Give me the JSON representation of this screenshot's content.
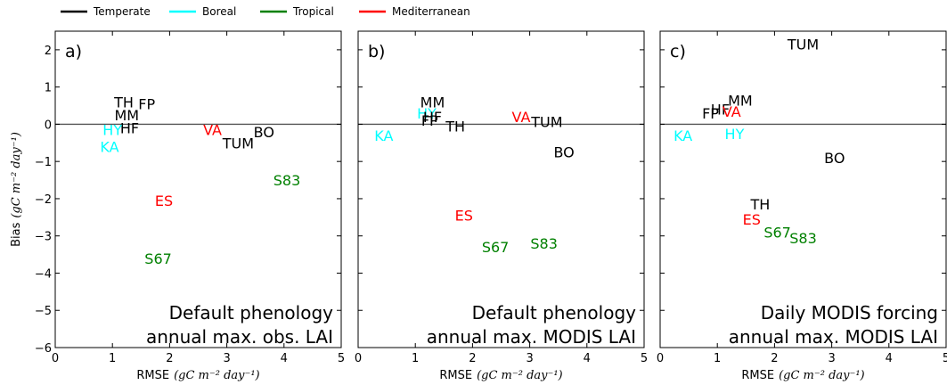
{
  "legend": [
    {
      "name": "Temperate",
      "color": "#000000"
    },
    {
      "name": "Boreal",
      "color": "#00ffff"
    },
    {
      "name": "Tropical",
      "color": "#008000"
    },
    {
      "name": "Mediterranean",
      "color": "#ff0000"
    }
  ],
  "chart_data": [
    {
      "type": "scatter",
      "panel": "a)",
      "xlabel_main": "RMSE",
      "xlabel_unit": "(gC m⁻² day⁻¹)",
      "ylabel_main": "Bias",
      "ylabel_unit": "(gC m⁻² day⁻¹)",
      "xlim": [
        0,
        5
      ],
      "ylim": [
        -6,
        2.5
      ],
      "xticks": [
        0,
        1,
        2,
        3,
        4,
        5
      ],
      "yticks": [
        -6,
        -5,
        -4,
        -3,
        -2,
        -1,
        0,
        1,
        2
      ],
      "annotation": [
        "Default phenology",
        "annual max. obs. LAI"
      ],
      "points": [
        {
          "label": "TH",
          "x": 1.2,
          "y": 0.6,
          "group": "Temperate"
        },
        {
          "label": "FP",
          "x": 1.6,
          "y": 0.55,
          "group": "Temperate"
        },
        {
          "label": "MM",
          "x": 1.25,
          "y": 0.25,
          "group": "Temperate"
        },
        {
          "label": "HF",
          "x": 1.3,
          "y": -0.1,
          "group": "Temperate"
        },
        {
          "label": "HY",
          "x": 1.0,
          "y": -0.15,
          "group": "Boreal"
        },
        {
          "label": "KA",
          "x": 0.95,
          "y": -0.6,
          "group": "Boreal"
        },
        {
          "label": "VA",
          "x": 2.75,
          "y": -0.15,
          "group": "Mediterranean"
        },
        {
          "label": "TUM",
          "x": 3.2,
          "y": -0.5,
          "group": "Temperate"
        },
        {
          "label": "BO",
          "x": 3.65,
          "y": -0.2,
          "group": "Temperate"
        },
        {
          "label": "S83",
          "x": 4.05,
          "y": -1.5,
          "group": "Tropical"
        },
        {
          "label": "ES",
          "x": 1.9,
          "y": -2.05,
          "group": "Mediterranean"
        },
        {
          "label": "S67",
          "x": 1.8,
          "y": -3.6,
          "group": "Tropical"
        }
      ]
    },
    {
      "type": "scatter",
      "panel": "b)",
      "xlabel_main": "RMSE",
      "xlabel_unit": "(gC m⁻² day⁻¹)",
      "xlim": [
        0,
        5
      ],
      "ylim": [
        -6,
        2.5
      ],
      "xticks": [
        0,
        1,
        2,
        3,
        4,
        5
      ],
      "annotation": [
        "Default phenology",
        "annual max. MODIS LAI"
      ],
      "points": [
        {
          "label": "MM",
          "x": 1.3,
          "y": 0.6,
          "group": "Temperate"
        },
        {
          "label": "HY",
          "x": 1.2,
          "y": 0.3,
          "group": "Boreal"
        },
        {
          "label": "HF",
          "x": 1.3,
          "y": 0.2,
          "group": "Temperate"
        },
        {
          "label": "FP",
          "x": 1.25,
          "y": 0.1,
          "group": "Temperate"
        },
        {
          "label": "TH",
          "x": 1.7,
          "y": -0.05,
          "group": "Temperate"
        },
        {
          "label": "KA",
          "x": 0.45,
          "y": -0.3,
          "group": "Boreal"
        },
        {
          "label": "VA",
          "x": 2.85,
          "y": 0.2,
          "group": "Mediterranean"
        },
        {
          "label": "TUM",
          "x": 3.3,
          "y": 0.07,
          "group": "Temperate"
        },
        {
          "label": "BO",
          "x": 3.6,
          "y": -0.75,
          "group": "Temperate"
        },
        {
          "label": "ES",
          "x": 1.85,
          "y": -2.45,
          "group": "Mediterranean"
        },
        {
          "label": "S67",
          "x": 2.4,
          "y": -3.3,
          "group": "Tropical"
        },
        {
          "label": "S83",
          "x": 3.25,
          "y": -3.2,
          "group": "Tropical"
        }
      ]
    },
    {
      "type": "scatter",
      "panel": "c)",
      "xlabel_main": "RMSE",
      "xlabel_unit": "(gC m⁻² day⁻¹)",
      "xlim": [
        0,
        5
      ],
      "ylim": [
        -6,
        2.5
      ],
      "xticks": [
        0,
        1,
        2,
        3,
        4,
        5
      ],
      "annotation": [
        "Daily MODIS forcing",
        "annual max. MODIS LAI"
      ],
      "points": [
        {
          "label": "TUM",
          "x": 2.5,
          "y": 2.15,
          "group": "Temperate"
        },
        {
          "label": "MM",
          "x": 1.4,
          "y": 0.65,
          "group": "Temperate"
        },
        {
          "label": "HF",
          "x": 1.05,
          "y": 0.4,
          "group": "Temperate"
        },
        {
          "label": "FP",
          "x": 0.88,
          "y": 0.3,
          "group": "Temperate"
        },
        {
          "label": "VA",
          "x": 1.25,
          "y": 0.35,
          "group": "Mediterranean"
        },
        {
          "label": "KA",
          "x": 0.4,
          "y": -0.3,
          "group": "Boreal"
        },
        {
          "label": "HY",
          "x": 1.3,
          "y": -0.25,
          "group": "Boreal"
        },
        {
          "label": "BO",
          "x": 3.05,
          "y": -0.9,
          "group": "Temperate"
        },
        {
          "label": "TH",
          "x": 1.75,
          "y": -2.15,
          "group": "Temperate"
        },
        {
          "label": "ES",
          "x": 1.6,
          "y": -2.55,
          "group": "Mediterranean"
        },
        {
          "label": "S67",
          "x": 2.05,
          "y": -2.9,
          "group": "Tropical"
        },
        {
          "label": "S83",
          "x": 2.5,
          "y": -3.05,
          "group": "Tropical"
        }
      ]
    }
  ]
}
